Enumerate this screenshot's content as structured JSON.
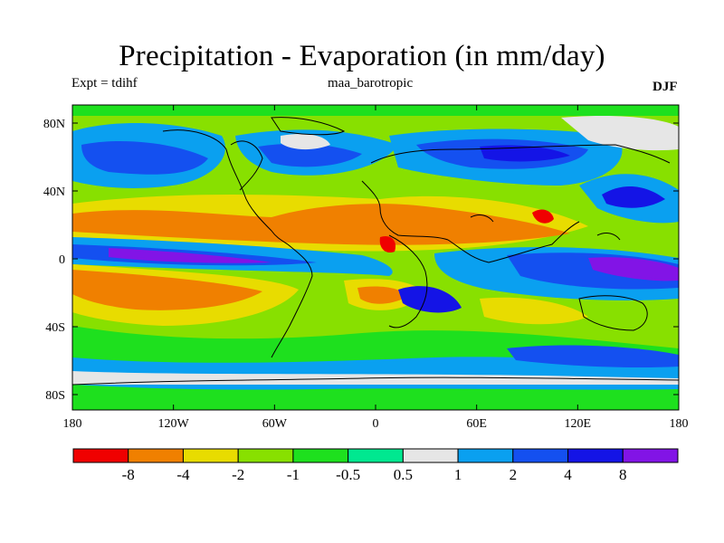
{
  "title": "Precipitation - Evaporation (in mm/day)",
  "experiment_label": "Expt = tdihf",
  "case_label": "maa_barotropic",
  "season_label": "DJF",
  "map": {
    "lon_ticks": [
      "180",
      "120W",
      "60W",
      "0",
      "60E",
      "120E",
      "180"
    ],
    "lat_ticks": [
      "80N",
      "40N",
      "0",
      "40S",
      "80S"
    ]
  },
  "colorbar": {
    "levels": [
      "-8",
      "-4",
      "-2",
      "-1",
      "-0.5",
      "0.5",
      "1",
      "2",
      "4",
      "8"
    ],
    "colors": [
      "#f00000",
      "#f08000",
      "#e8dc00",
      "#88e000",
      "#1ee01e",
      "#00e890",
      "#e6e6e6",
      "#0aa0f0",
      "#1450f0",
      "#1414e6",
      "#8214e6"
    ]
  }
}
